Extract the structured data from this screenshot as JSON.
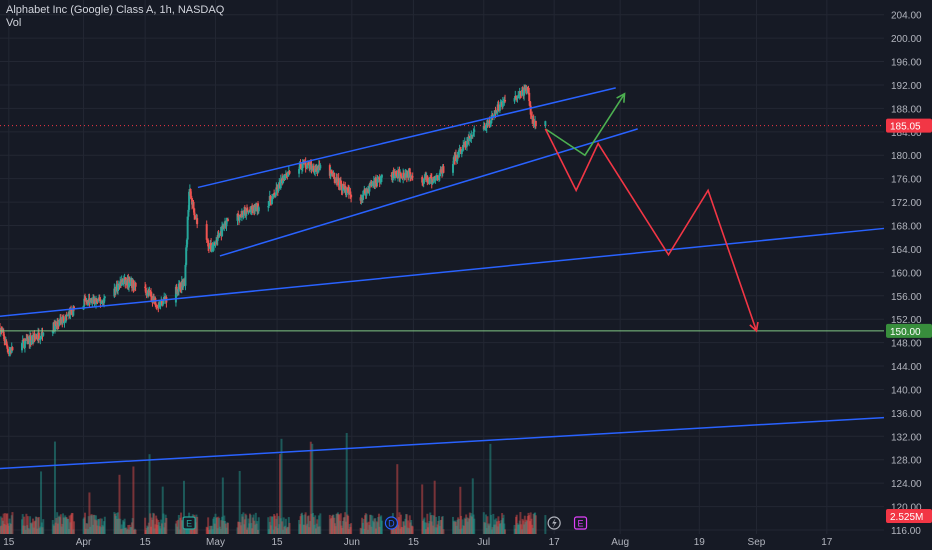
{
  "header": {
    "symbol_title": "Alphabet Inc (Google) Class A, 1h, NASDAQ",
    "volume_label": "Vol"
  },
  "price_axis": {
    "labels": [
      "204.00",
      "200.00",
      "196.00",
      "192.00",
      "188.00",
      "184.00",
      "180.00",
      "176.00",
      "172.00",
      "168.00",
      "164.00",
      "160.00",
      "156.00",
      "152.00",
      "148.00",
      "144.00",
      "140.00",
      "136.00",
      "132.00",
      "128.00",
      "124.00",
      "120.00",
      "116.00"
    ],
    "current_price": "185.05",
    "target_price": "150.00",
    "volume_badge": "2.525M"
  },
  "time_axis": {
    "labels": [
      "15",
      "Apr",
      "15",
      "May",
      "15",
      "Jun",
      "15",
      "Jul",
      "17",
      "Aug",
      "19",
      "Sep",
      "17"
    ]
  },
  "event_markers": [
    {
      "label": "E",
      "kind": "earnings"
    },
    {
      "label": "D",
      "kind": "dividend"
    },
    {
      "label": "E",
      "kind": "earnings-upcoming"
    }
  ],
  "colors": {
    "background": "#161a25",
    "up": "#26a69a",
    "down": "#ef5350",
    "trendline": "#2962ff",
    "projection_down": "#f23645",
    "projection_up": "#4caf50",
    "target_line": "#81c784",
    "current_price_badge": "#f23645",
    "target_badge": "#388e3c",
    "dotted_price_line": "#f23645"
  },
  "chart_data": {
    "type": "candlestick",
    "title": "Alphabet Inc (Google) Class A, 1h, NASDAQ",
    "ylim": [
      116,
      206
    ],
    "y_ticks": [
      116,
      120,
      124,
      128,
      132,
      136,
      140,
      144,
      148,
      152,
      156,
      160,
      164,
      168,
      172,
      176,
      180,
      184,
      188,
      192,
      196,
      200,
      204
    ],
    "x_range": [
      "2024-03-13",
      "2024-09-30"
    ],
    "x_ticks": [
      "15",
      "Apr",
      "15",
      "May",
      "15",
      "Jun",
      "15",
      "Jul",
      "17",
      "Aug",
      "19",
      "Sep",
      "17"
    ],
    "price_path": [
      [
        "2024-03-13",
        150.5
      ],
      [
        "2024-03-15",
        146.5
      ],
      [
        "2024-03-20",
        148.5
      ],
      [
        "2024-03-26",
        151
      ],
      [
        "2024-04-01",
        155
      ],
      [
        "2024-04-05",
        155
      ],
      [
        "2024-04-10",
        158.5
      ],
      [
        "2024-04-15",
        157
      ],
      [
        "2024-04-18",
        154.5
      ],
      [
        "2024-04-22",
        157
      ],
      [
        "2024-04-24",
        158.5
      ],
      [
        "2024-04-25",
        174
      ],
      [
        "2024-04-27",
        168
      ],
      [
        "2024-04-30",
        164
      ],
      [
        "2024-05-04",
        169
      ],
      [
        "2024-05-09",
        170.5
      ],
      [
        "2024-05-14",
        172.5
      ],
      [
        "2024-05-17",
        177
      ],
      [
        "2024-05-21",
        178.5
      ],
      [
        "2024-05-27",
        177
      ],
      [
        "2024-06-02",
        172
      ],
      [
        "2024-06-06",
        175.5
      ],
      [
        "2024-06-10",
        176.5
      ],
      [
        "2024-06-14",
        177
      ],
      [
        "2024-06-19",
        175.5
      ],
      [
        "2024-06-24",
        179
      ],
      [
        "2024-06-29",
        184
      ],
      [
        "2024-07-02",
        185
      ],
      [
        "2024-07-05",
        189
      ],
      [
        "2024-07-09",
        190.5
      ],
      [
        "2024-07-11",
        191.2
      ],
      [
        "2024-07-12",
        186
      ],
      [
        "2024-07-15",
        185.05
      ]
    ],
    "current_price": 185.05,
    "target_price": 150.0,
    "volume_last": "2.525M",
    "trendlines": [
      {
        "name": "upper-channel",
        "points": [
          [
            "2024-04-27",
            174.5
          ],
          [
            "2024-07-31",
            191.5
          ]
        ]
      },
      {
        "name": "lower-channel",
        "points": [
          [
            "2024-05-02",
            162.8
          ],
          [
            "2024-08-05",
            184.5
          ]
        ]
      },
      {
        "name": "mid-support",
        "points": [
          [
            "2024-03-13",
            152.5
          ],
          [
            "2024-09-30",
            167.5
          ]
        ]
      },
      {
        "name": "long-support",
        "points": [
          [
            "2024-03-13",
            126.5
          ],
          [
            "2024-09-30",
            135.2
          ]
        ]
      }
    ],
    "projection_up": [
      [
        "2024-07-15",
        184.5
      ],
      [
        "2024-07-24",
        180
      ],
      [
        "2024-08-02",
        190.5
      ]
    ],
    "projection_down": [
      [
        "2024-07-15",
        184.5
      ],
      [
        "2024-07-22",
        174
      ],
      [
        "2024-07-27",
        182
      ],
      [
        "2024-08-12",
        163
      ],
      [
        "2024-08-21",
        174
      ],
      [
        "2024-09-01",
        150
      ]
    ]
  }
}
